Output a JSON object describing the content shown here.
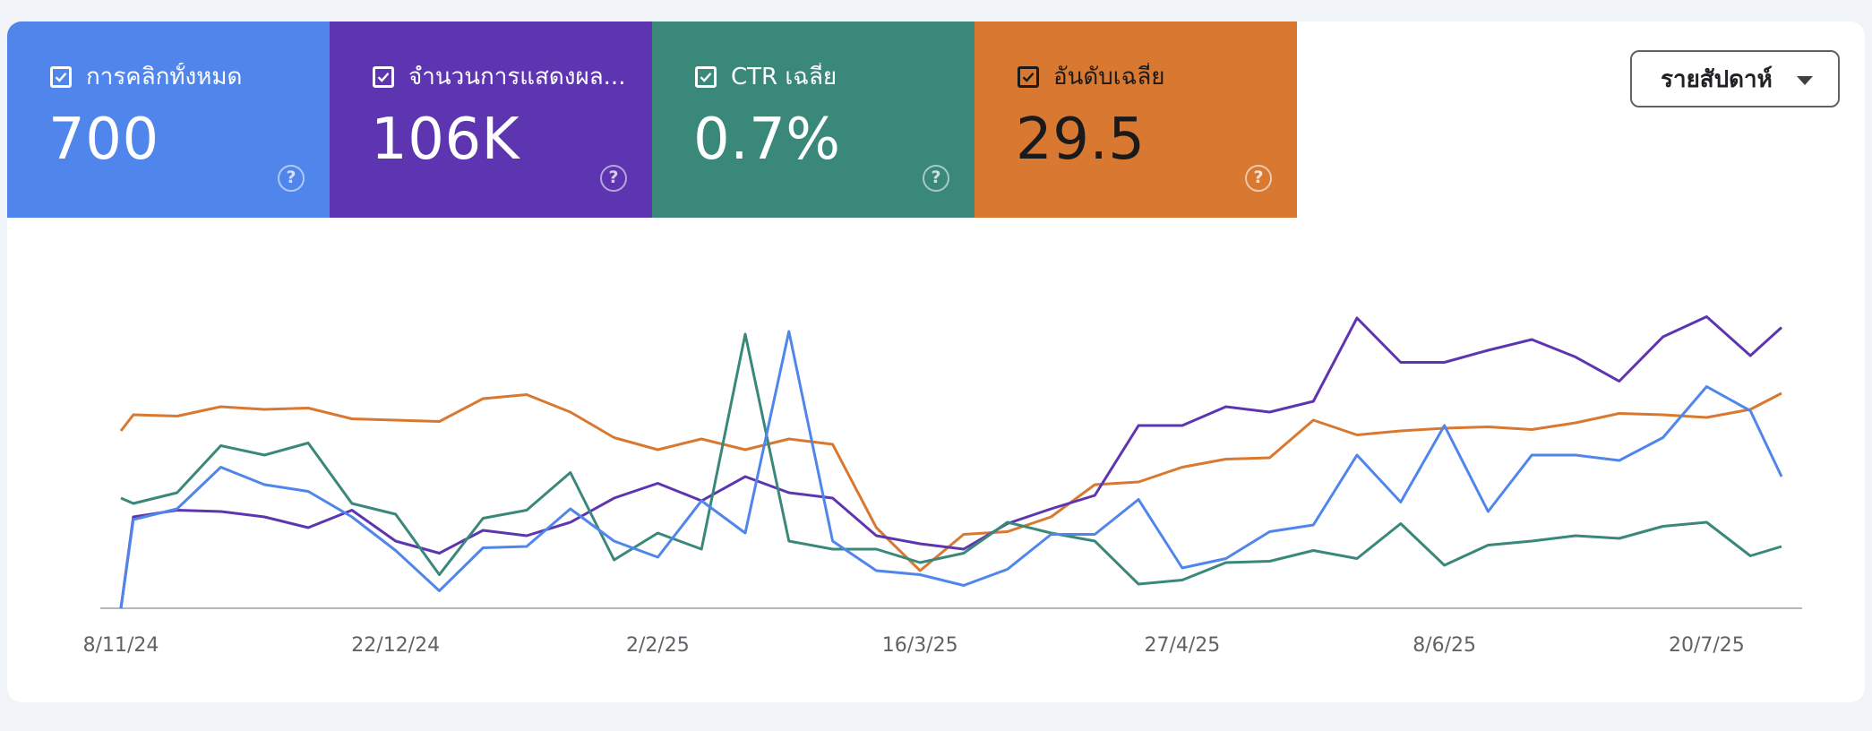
{
  "metrics": [
    {
      "label": "การคลิกทั้งหมด",
      "value": "700",
      "color": "#5086ec",
      "dark_text": false,
      "checked": true
    },
    {
      "label": "จำนวนการแสดงผล...",
      "value": "106K",
      "color": "#5e35b1",
      "dark_text": false,
      "checked": true
    },
    {
      "label": "CTR เฉลี่ย",
      "value": "0.7%",
      "color": "#3a887a",
      "dark_text": false,
      "checked": true
    },
    {
      "label": "อันดับเฉลี่ย",
      "value": "29.5",
      "color": "#d97831",
      "dark_text": true,
      "checked": true
    }
  ],
  "period_select": {
    "label": "รายสัปดาห์",
    "icon": "caret-down-icon"
  },
  "icons": {
    "checkbox": "checkbox-checked-icon",
    "help": "help-circle-icon"
  },
  "chart_data": {
    "type": "line",
    "x_ticks": [
      "8/11/24",
      "22/12/24",
      "2/2/25",
      "16/3/25",
      "27/4/25",
      "8/6/25",
      "20/7/25"
    ],
    "x_start": "2024-11-08",
    "x_end": "2025-08-01",
    "ylim": [
      0,
      100
    ],
    "grid": false,
    "legend": "none",
    "series": [
      {
        "name": "อันดับเฉลี่ย",
        "color": "#d97831",
        "x": [
          "2024-11-08",
          "2024-11-10",
          "2024-11-17",
          "2024-11-24",
          "2024-12-01",
          "2024-12-08",
          "2024-12-15",
          "2024-12-22",
          "2024-12-29",
          "2025-01-05",
          "2025-01-12",
          "2025-01-19",
          "2025-01-26",
          "2025-02-02",
          "2025-02-09",
          "2025-02-16",
          "2025-02-23",
          "2025-03-02",
          "2025-03-09",
          "2025-03-16",
          "2025-03-23",
          "2025-03-30",
          "2025-04-06",
          "2025-04-13",
          "2025-04-20",
          "2025-04-27",
          "2025-05-04",
          "2025-05-11",
          "2025-05-18",
          "2025-05-25",
          "2025-06-01",
          "2025-06-08",
          "2025-06-15",
          "2025-06-22",
          "2025-06-29",
          "2025-07-06",
          "2025-07-13",
          "2025-07-20",
          "2025-07-27",
          "2025-08-01"
        ],
        "values": [
          66,
          72,
          71.5,
          75,
          74,
          74.5,
          70.5,
          70,
          69.5,
          78,
          79.5,
          73,
          63.5,
          59,
          63,
          59,
          63,
          61,
          30,
          14,
          27.5,
          28.5,
          34,
          46,
          47,
          52.5,
          55.5,
          56,
          70,
          64.5,
          66,
          67,
          67.5,
          66.5,
          69,
          72.5,
          72,
          71,
          74,
          80
        ]
      },
      {
        "name": "จำนวนการแสดงผล",
        "color": "#5e35b1",
        "x": [
          "2024-11-08",
          "2024-11-10",
          "2024-11-17",
          "2024-11-24",
          "2024-12-01",
          "2024-12-08",
          "2024-12-15",
          "2024-12-22",
          "2024-12-29",
          "2025-01-05",
          "2025-01-12",
          "2025-01-19",
          "2025-01-26",
          "2025-02-02",
          "2025-02-09",
          "2025-02-16",
          "2025-02-23",
          "2025-03-02",
          "2025-03-09",
          "2025-03-16",
          "2025-03-23",
          "2025-03-30",
          "2025-04-06",
          "2025-04-13",
          "2025-04-20",
          "2025-04-27",
          "2025-05-04",
          "2025-05-11",
          "2025-05-18",
          "2025-05-25",
          "2025-06-01",
          "2025-06-08",
          "2025-06-15",
          "2025-06-22",
          "2025-06-29",
          "2025-07-06",
          "2025-07-13",
          "2025-07-20",
          "2025-07-27",
          "2025-08-01"
        ],
        "values": [
          0,
          34,
          36.5,
          36,
          34,
          30,
          36.5,
          25,
          20.5,
          29,
          27,
          32,
          41,
          46.5,
          40,
          49,
          43,
          41,
          27,
          24,
          22,
          31.5,
          37,
          42,
          68,
          68,
          75,
          73,
          77,
          108,
          91.5,
          91.5,
          96,
          100,
          93.5,
          84.5,
          101,
          108.5,
          94,
          104.5
        ]
      },
      {
        "name": "CTR เฉลี่ย",
        "color": "#3a887a",
        "x": [
          "2024-11-08",
          "2024-11-10",
          "2024-11-17",
          "2024-11-24",
          "2024-12-01",
          "2024-12-08",
          "2024-12-15",
          "2024-12-22",
          "2024-12-29",
          "2025-01-05",
          "2025-01-12",
          "2025-01-19",
          "2025-01-26",
          "2025-02-02",
          "2025-02-09",
          "2025-02-16",
          "2025-02-23",
          "2025-03-02",
          "2025-03-09",
          "2025-03-16",
          "2025-03-23",
          "2025-03-30",
          "2025-04-06",
          "2025-04-13",
          "2025-04-20",
          "2025-04-27",
          "2025-05-04",
          "2025-05-11",
          "2025-05-18",
          "2025-05-25",
          "2025-06-01",
          "2025-06-08",
          "2025-06-15",
          "2025-06-22",
          "2025-06-29",
          "2025-07-06",
          "2025-07-13",
          "2025-07-20",
          "2025-07-27",
          "2025-08-01"
        ],
        "values": [
          41,
          39,
          43,
          60.5,
          57,
          61.5,
          39,
          35,
          12.5,
          33.5,
          36.5,
          50.5,
          18,
          28,
          22,
          102,
          25,
          22,
          22,
          17,
          20.5,
          32,
          28,
          25,
          9,
          10.5,
          17,
          17.5,
          21.5,
          18.5,
          31.5,
          16,
          23.5,
          25,
          27,
          26,
          30.5,
          32,
          19.5,
          23
        ]
      },
      {
        "name": "การคลิกทั้งหมด",
        "color": "#5086ec",
        "x": [
          "2024-11-08",
          "2024-11-10",
          "2024-11-17",
          "2024-11-24",
          "2024-12-01",
          "2024-12-08",
          "2024-12-15",
          "2024-12-22",
          "2024-12-29",
          "2025-01-05",
          "2025-01-12",
          "2025-01-19",
          "2025-01-26",
          "2025-02-02",
          "2025-02-09",
          "2025-02-16",
          "2025-02-23",
          "2025-03-02",
          "2025-03-09",
          "2025-03-16",
          "2025-03-23",
          "2025-03-30",
          "2025-04-06",
          "2025-04-13",
          "2025-04-20",
          "2025-04-27",
          "2025-05-04",
          "2025-05-11",
          "2025-05-18",
          "2025-05-25",
          "2025-06-01",
          "2025-06-08",
          "2025-06-15",
          "2025-06-22",
          "2025-06-29",
          "2025-07-06",
          "2025-07-13",
          "2025-07-20",
          "2025-07-27",
          "2025-08-01"
        ],
        "values": [
          0,
          33,
          37,
          52.5,
          46,
          43.5,
          34,
          21.5,
          6.5,
          22.5,
          23,
          37,
          25,
          19,
          40,
          28,
          103,
          25,
          14,
          12.5,
          8.5,
          14.5,
          27.5,
          27.5,
          40.5,
          15,
          18.5,
          28.5,
          31,
          57,
          39.5,
          68,
          36,
          57,
          57,
          55,
          63.5,
          82.5,
          73.5,
          49
        ]
      }
    ]
  }
}
